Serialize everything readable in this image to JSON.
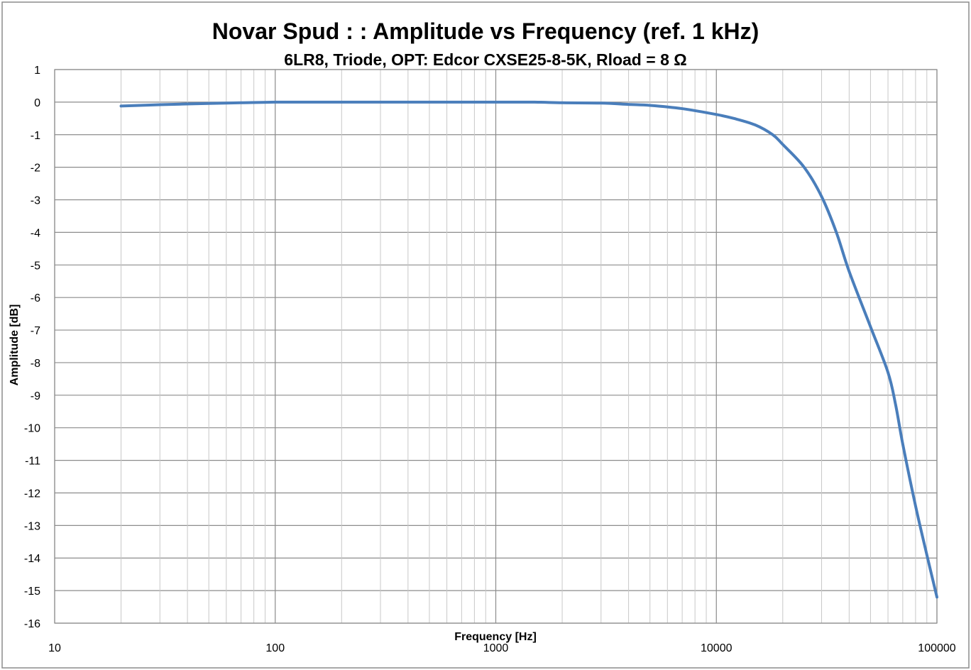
{
  "chart_data": {
    "type": "line",
    "title": "Novar Spud : : Amplitude vs Frequency (ref. 1 kHz)",
    "subtitle": "6LR8, Triode, OPT: Edcor CXSE25-8-5K, Rload = 8 Ω",
    "xlabel": "Frequency [Hz]",
    "ylabel": "Amplitude [dB]",
    "xscale": "log",
    "xlim": [
      10,
      100000
    ],
    "ylim": [
      -16,
      1
    ],
    "grid": true,
    "legend": "none",
    "x_tick_labels": [
      "10",
      "100",
      "1000",
      "10000",
      "100000"
    ],
    "y_tick_labels": [
      "1",
      "0",
      "-1",
      "-2",
      "-3",
      "-4",
      "-5",
      "-6",
      "-7",
      "-8",
      "-9",
      "-10",
      "-11",
      "-12",
      "-13",
      "-14",
      "-15",
      "-16"
    ],
    "line_color": "#4a7ebb",
    "series": [
      {
        "x": [
          20,
          30,
          50,
          70,
          100,
          150,
          200,
          300,
          500,
          700,
          1000,
          1500,
          2000,
          3000,
          4000,
          5000,
          7000,
          10000,
          12000,
          15000,
          18000,
          20000,
          25000,
          30000,
          35000,
          40000,
          50000,
          60000,
          65000,
          70000,
          80000,
          90000,
          100000
        ],
        "y": [
          -0.12,
          -0.08,
          -0.04,
          -0.02,
          0.0,
          0.0,
          0.0,
          0.0,
          0.0,
          0.0,
          0.0,
          0.0,
          -0.02,
          -0.03,
          -0.07,
          -0.1,
          -0.2,
          -0.38,
          -0.5,
          -0.7,
          -1.0,
          -1.3,
          -2.0,
          -2.9,
          -4.0,
          -5.2,
          -6.9,
          -8.3,
          -9.3,
          -10.5,
          -12.4,
          -13.9,
          -15.2
        ]
      }
    ]
  }
}
